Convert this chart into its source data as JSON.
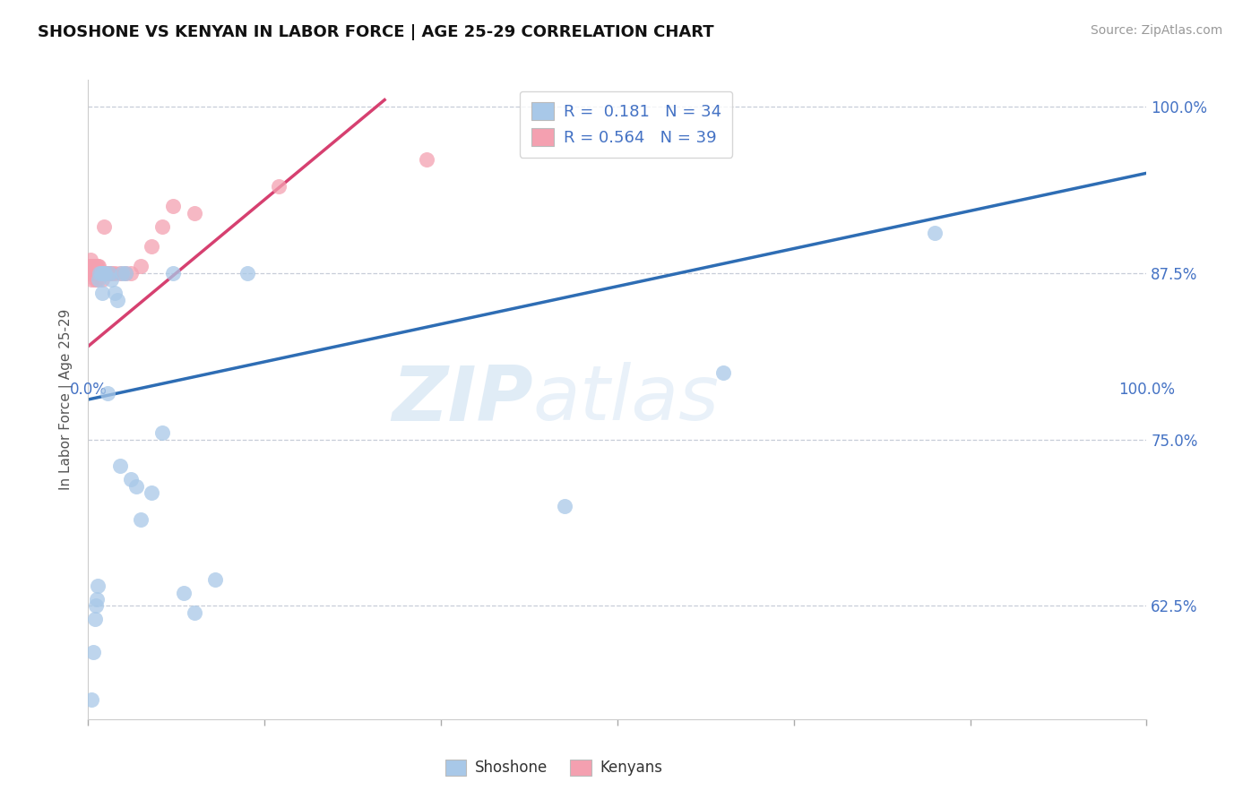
{
  "title": "SHOSHONE VS KENYAN IN LABOR FORCE | AGE 25-29 CORRELATION CHART",
  "source": "Source: ZipAtlas.com",
  "ylabel": "In Labor Force | Age 25-29",
  "xlim": [
    0.0,
    1.0
  ],
  "ylim": [
    0.54,
    1.02
  ],
  "yticks": [
    0.625,
    0.75,
    0.875,
    1.0
  ],
  "ytick_labels": [
    "62.5%",
    "75.0%",
    "87.5%",
    "100.0%"
  ],
  "legend_blue_R": "0.181",
  "legend_blue_N": "34",
  "legend_pink_R": "0.564",
  "legend_pink_N": "39",
  "blue_color": "#a8c8e8",
  "pink_color": "#f4a0b0",
  "trend_blue_color": "#2e6db4",
  "trend_pink_color": "#d64070",
  "watermark_zip": "ZIP",
  "watermark_atlas": "atlas",
  "shoshone_x": [
    0.003,
    0.005,
    0.006,
    0.007,
    0.008,
    0.009,
    0.01,
    0.011,
    0.012,
    0.013,
    0.014,
    0.015,
    0.016,
    0.018,
    0.02,
    0.022,
    0.025,
    0.028,
    0.03,
    0.032,
    0.035,
    0.04,
    0.045,
    0.05,
    0.06,
    0.07,
    0.08,
    0.09,
    0.1,
    0.12,
    0.15,
    0.45,
    0.6,
    0.8
  ],
  "shoshone_y": [
    0.555,
    0.59,
    0.615,
    0.625,
    0.63,
    0.64,
    0.87,
    0.875,
    0.875,
    0.86,
    0.875,
    0.875,
    0.875,
    0.785,
    0.875,
    0.87,
    0.86,
    0.855,
    0.73,
    0.875,
    0.875,
    0.72,
    0.715,
    0.69,
    0.71,
    0.755,
    0.875,
    0.635,
    0.62,
    0.645,
    0.875,
    0.7,
    0.8,
    0.905
  ],
  "kenyan_x": [
    0.001,
    0.002,
    0.002,
    0.003,
    0.003,
    0.004,
    0.004,
    0.005,
    0.005,
    0.006,
    0.006,
    0.007,
    0.007,
    0.008,
    0.008,
    0.009,
    0.009,
    0.01,
    0.01,
    0.011,
    0.012,
    0.013,
    0.014,
    0.015,
    0.016,
    0.018,
    0.02,
    0.022,
    0.025,
    0.03,
    0.035,
    0.04,
    0.05,
    0.06,
    0.07,
    0.08,
    0.1,
    0.18,
    0.32
  ],
  "kenyan_y": [
    0.88,
    0.875,
    0.885,
    0.87,
    0.88,
    0.875,
    0.88,
    0.875,
    0.88,
    0.87,
    0.875,
    0.875,
    0.88,
    0.87,
    0.875,
    0.875,
    0.88,
    0.875,
    0.88,
    0.875,
    0.875,
    0.87,
    0.875,
    0.91,
    0.875,
    0.875,
    0.875,
    0.875,
    0.875,
    0.875,
    0.875,
    0.875,
    0.88,
    0.895,
    0.91,
    0.925,
    0.92,
    0.94,
    0.96
  ],
  "blue_line_x": [
    0.0,
    1.0
  ],
  "blue_line_y": [
    0.78,
    0.95
  ],
  "pink_line_x": [
    0.0,
    0.28
  ],
  "pink_line_y": [
    0.82,
    1.005
  ]
}
